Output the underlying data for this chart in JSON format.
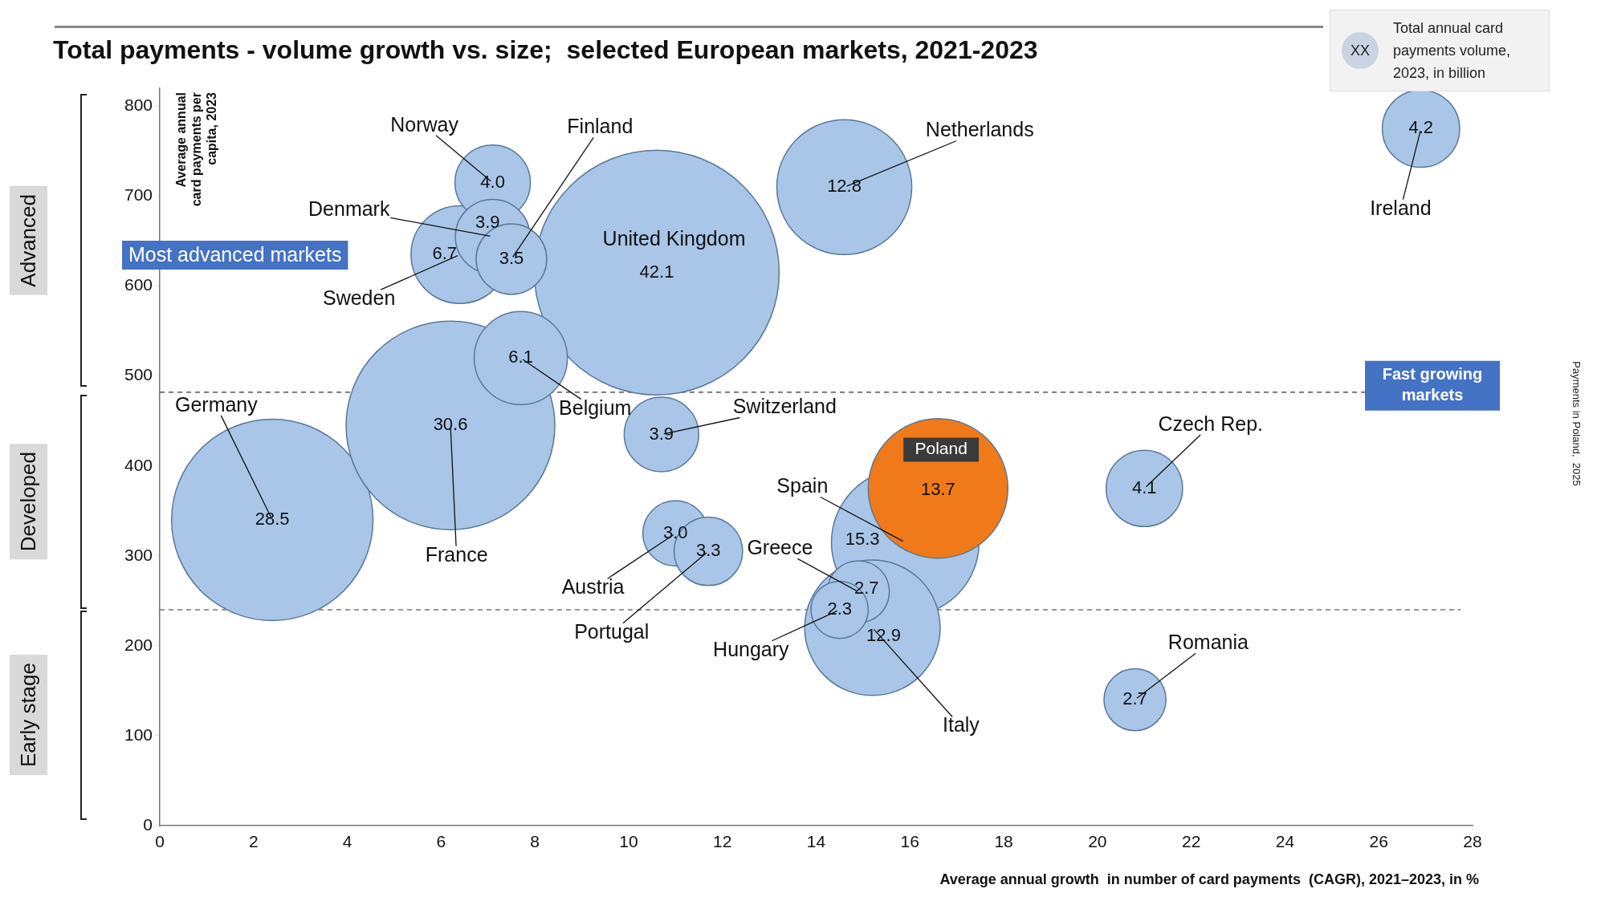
{
  "chart_data": {
    "type": "bubble",
    "title": "Total payments - volume growth vs. size;  selected European markets, 2021-2023",
    "xlabel": "Average annual growth  in number of card payments  (CAGR), 2021–2023, in %",
    "ylabel": "Average annual card payments per capita, 2023",
    "legend_title": "Total annual card payments volume, 2023, in billion",
    "x": [
      2.4,
      10.6,
      6.2,
      15.9,
      15.2,
      16.6,
      14.6,
      6.4,
      7.7,
      7.1,
      7.1,
      7.5,
      26.9,
      21.0,
      10.7,
      11.0,
      11.7,
      14.9,
      14.5,
      20.8
    ],
    "values": [
      340,
      615,
      445,
      315,
      220,
      375,
      710,
      635,
      520,
      715,
      655,
      630,
      775,
      375,
      435,
      325,
      305,
      260,
      240,
      140
    ],
    "sizes": [
      28.5,
      42.1,
      30.6,
      15.3,
      12.9,
      13.7,
      12.8,
      6.7,
      6.1,
      4.0,
      3.9,
      3.5,
      4.2,
      4.1,
      3.9,
      3.0,
      3.3,
      2.7,
      2.3,
      2.7
    ],
    "value_labels": [
      "28.5",
      "42.1",
      "30.6",
      "15.3",
      "12.9",
      "13.7",
      "12.8",
      "6.7",
      "6.1",
      "4.0",
      "3.9",
      "3.5",
      "4.2",
      "4.1",
      "3.9",
      "3.0",
      "3.3",
      "2.7",
      "2.3",
      "2.7"
    ],
    "colors": [
      "#a9c6e8",
      "#a9c6e8",
      "#a9c6e8",
      "#a9c6e8",
      "#a9c6e8",
      "#f07a1a",
      "#a9c6e8",
      "#a9c6e8",
      "#a9c6e8",
      "#a9c6e8",
      "#a9c6e8",
      "#a9c6e8",
      "#a9c6e8",
      "#a9c6e8",
      "#a9c6e8",
      "#a9c6e8",
      "#a9c6e8",
      "#a9c6e8",
      "#a9c6e8",
      "#a9c6e8"
    ],
    "xlim": [
      0,
      28
    ],
    "xticks": [
      0,
      2,
      4,
      6,
      8,
      10,
      12,
      14,
      16,
      18,
      20,
      22,
      24,
      26,
      28
    ],
    "ylim": [
      0,
      820
    ],
    "yticks": [
      0,
      100,
      200,
      300,
      400,
      500,
      600,
      700,
      800
    ],
    "ref_lines": [
      {
        "axis": "y",
        "value": 482,
        "line_style": "dashed"
      },
      {
        "axis": "y",
        "value": 240,
        "line_style": "dashed"
      }
    ],
    "annotations": [
      {
        "text": "Germany",
        "x": 2.4,
        "y": 340
      },
      {
        "text": "United Kingdom",
        "x": 10.6,
        "y": 615
      },
      {
        "text": "France",
        "x": 6.2,
        "y": 445
      },
      {
        "text": "Spain",
        "x": 15.9,
        "y": 315
      },
      {
        "text": "Italy",
        "x": 15.2,
        "y": 220
      },
      {
        "text": "Poland",
        "x": 16.6,
        "y": 375
      },
      {
        "text": "Netherlands",
        "x": 14.6,
        "y": 710
      },
      {
        "text": "Sweden",
        "x": 6.4,
        "y": 635
      },
      {
        "text": "Belgium",
        "x": 7.7,
        "y": 520
      },
      {
        "text": "Norway",
        "x": 7.1,
        "y": 715
      },
      {
        "text": "Denmark",
        "x": 7.1,
        "y": 655
      },
      {
        "text": "Finland",
        "x": 7.5,
        "y": 630
      },
      {
        "text": "Ireland",
        "x": 26.9,
        "y": 775
      },
      {
        "text": "Czech Rep.",
        "x": 21.0,
        "y": 375
      },
      {
        "text": "Switzerland",
        "x": 10.7,
        "y": 435
      },
      {
        "text": "Austria",
        "x": 11.0,
        "y": 325
      },
      {
        "text": "Portugal",
        "x": 11.7,
        "y": 305
      },
      {
        "text": "Greece",
        "x": 14.9,
        "y": 260
      },
      {
        "text": "Hungary",
        "x": 14.5,
        "y": 240
      },
      {
        "text": "Romania",
        "x": 20.8,
        "y": 140
      },
      "Most advanced markets",
      "Fast growing markets",
      "XX",
      "Payments in Poland,  2025",
      "Advanced",
      "Developed",
      "Early stage"
    ]
  }
}
